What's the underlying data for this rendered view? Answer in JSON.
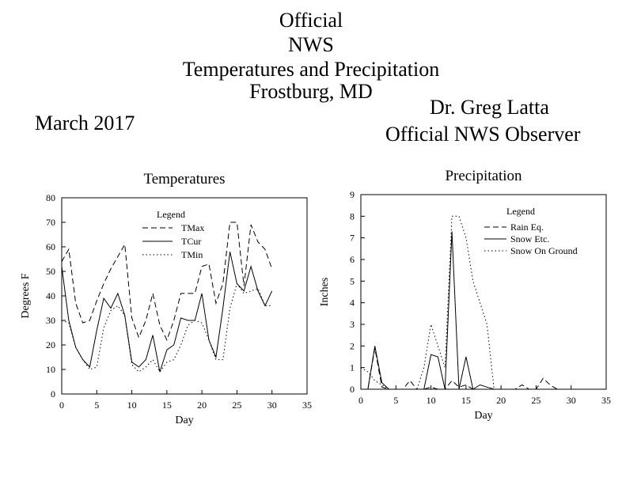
{
  "header": {
    "line1": "Official",
    "line2": "NWS",
    "line3": "Temperatures and Precipitation",
    "line4": "Frostburg, MD",
    "month": "March 2017",
    "observer_name": "Dr. Greg Latta",
    "observer_title": "Official NWS Observer"
  },
  "chart_data": [
    {
      "type": "line",
      "title": "Temperatures",
      "xlabel": "Day",
      "ylabel": "Degrees F",
      "xlim": [
        0,
        35
      ],
      "ylim": [
        0,
        80
      ],
      "xticks": [
        0,
        5,
        10,
        15,
        20,
        25,
        30,
        35
      ],
      "yticks": [
        0,
        10,
        20,
        30,
        40,
        50,
        60,
        70,
        80
      ],
      "grid": false,
      "legend_title": "Legend",
      "legend_position": "top-center",
      "x": [
        0,
        1,
        2,
        3,
        4,
        5,
        6,
        7,
        8,
        9,
        10,
        11,
        12,
        13,
        14,
        15,
        16,
        17,
        18,
        19,
        20,
        21,
        22,
        23,
        24,
        25,
        26,
        27,
        28,
        29,
        30
      ],
      "series": [
        {
          "name": "TMax",
          "style": "dashed",
          "values": [
            54,
            59,
            37,
            29,
            30,
            38,
            45,
            51,
            56,
            61,
            31,
            23,
            30,
            41,
            28,
            22,
            30,
            41,
            41,
            41,
            52,
            53,
            37,
            45,
            70,
            70,
            44,
            69,
            62,
            59,
            51
          ]
        },
        {
          "name": "TCur",
          "style": "solid",
          "values": [
            52,
            30,
            19,
            14,
            11,
            26,
            39,
            35,
            41,
            32,
            13,
            11,
            14,
            24,
            9,
            18,
            20,
            31,
            30,
            30,
            41,
            22,
            15,
            35,
            58,
            45,
            42,
            52,
            42,
            36,
            42
          ]
        },
        {
          "name": "TMin",
          "style": "dotted",
          "values": [
            30,
            29,
            19,
            14,
            10,
            11,
            27,
            34,
            36,
            32,
            12,
            9,
            11,
            14,
            9,
            13,
            14,
            20,
            28,
            30,
            29,
            22,
            14,
            14,
            35,
            45,
            41,
            42,
            43,
            36,
            36
          ]
        }
      ]
    },
    {
      "type": "line",
      "title": "Precipitation",
      "xlabel": "Day",
      "ylabel": "Inches",
      "xlim": [
        0,
        35
      ],
      "ylim": [
        0,
        9
      ],
      "xticks": [
        0,
        5,
        10,
        15,
        20,
        25,
        30,
        35
      ],
      "yticks": [
        0,
        1,
        2,
        3,
        4,
        5,
        6,
        7,
        8,
        9
      ],
      "grid": false,
      "legend_title": "Legend",
      "legend_position": "top-right",
      "x": [
        0,
        1,
        2,
        3,
        4,
        5,
        6,
        7,
        8,
        9,
        10,
        11,
        12,
        13,
        14,
        15,
        16,
        17,
        18,
        19,
        20,
        21,
        22,
        23,
        24,
        25,
        26,
        27,
        28,
        29,
        30
      ],
      "series": [
        {
          "name": "Rain Eq.",
          "style": "dashed",
          "values": [
            0,
            0,
            1.9,
            0.1,
            0,
            0,
            0,
            0.4,
            0,
            0,
            0.1,
            0,
            0,
            0.4,
            0.1,
            0.2,
            0,
            0,
            0,
            0,
            0,
            0,
            0,
            0.2,
            0,
            0,
            0.5,
            0.2,
            0,
            0,
            0
          ]
        },
        {
          "name": "Snow Etc.",
          "style": "solid",
          "values": [
            0,
            0,
            2.0,
            0.3,
            0,
            0,
            0,
            0,
            0,
            0,
            1.6,
            1.5,
            0,
            7.3,
            0,
            1.5,
            0,
            0.2,
            0.1,
            0,
            0,
            0,
            0,
            0,
            0,
            0,
            0,
            0,
            0,
            0,
            0
          ]
        },
        {
          "name": "Snow On Ground",
          "style": "dotted",
          "values": [
            1,
            0.8,
            0.4,
            0.2,
            0,
            0,
            0,
            0,
            0,
            1.0,
            3.0,
            2.0,
            1.0,
            8.0,
            8.0,
            7.0,
            5.0,
            4.0,
            3.0,
            0,
            0,
            0,
            0,
            0,
            0,
            0,
            0,
            0,
            0,
            0,
            0
          ]
        }
      ]
    }
  ]
}
